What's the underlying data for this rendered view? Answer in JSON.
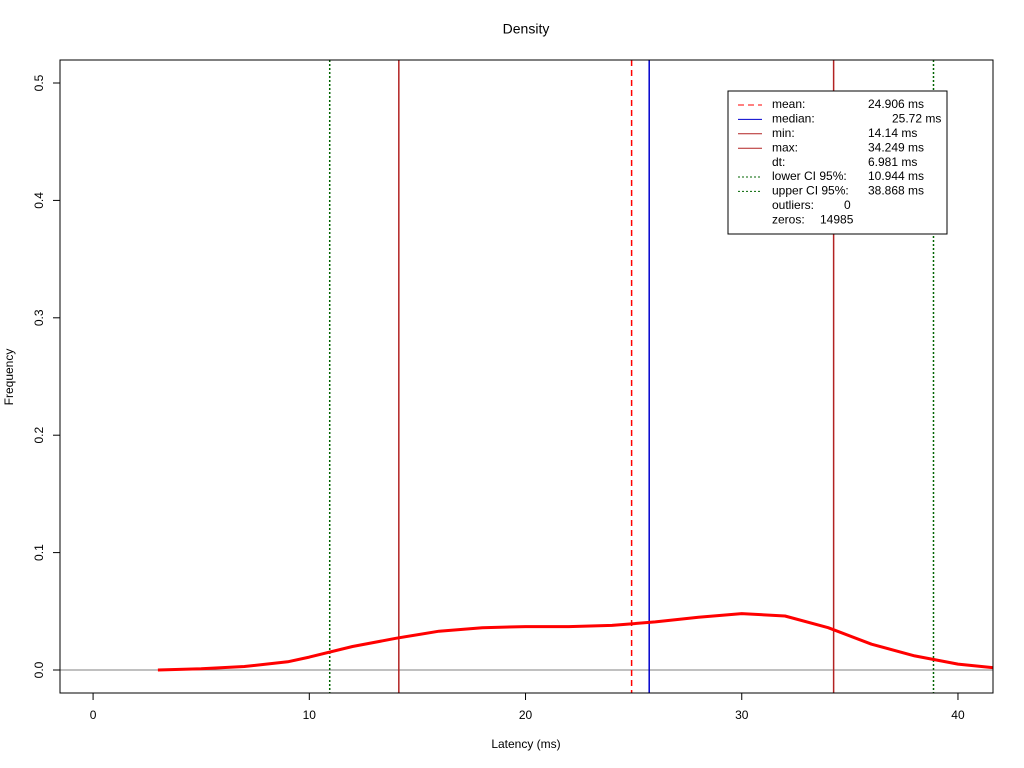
{
  "chart_data": {
    "type": "line",
    "title": "Density",
    "x_label": "Latency (ms)",
    "y_label": "Frequency",
    "x": [
      3,
      5,
      7,
      9,
      10,
      12,
      14,
      16,
      18,
      20,
      22,
      24,
      26,
      28,
      30,
      32,
      34,
      36,
      38,
      40,
      41.6
    ],
    "values": [
      0.0,
      0.001,
      0.003,
      0.007,
      0.011,
      0.02,
      0.027,
      0.033,
      0.036,
      0.037,
      0.037,
      0.038,
      0.041,
      0.045,
      0.048,
      0.046,
      0.036,
      0.022,
      0.012,
      0.005,
      0.002
    ],
    "color": "#ff0000",
    "xlim": [
      -1.53,
      41.62
    ],
    "ylim": [
      -0.0196,
      0.5196
    ],
    "xticks": [
      0,
      10,
      20,
      30,
      40
    ],
    "yticks": [
      {
        "value": 0,
        "label": "0.0"
      },
      0.1,
      0.2,
      0.3,
      0.4,
      0.5
    ],
    "hline": 0,
    "hline_color": "#808080",
    "lines": [
      {
        "name": "mean:",
        "value": 24.906,
        "label": "24.906 ms",
        "color": "#ff0000",
        "style": "dashed"
      },
      {
        "name": "median:",
        "value": 25.72,
        "label": "25.72 ms",
        "color": "#0000cd",
        "style": "solid"
      },
      {
        "name": "min:",
        "value": 14.14,
        "label": "14.14 ms",
        "color": "#b22222",
        "style": "solid"
      },
      {
        "name": "max:",
        "value": 34.249,
        "label": "34.249 ms",
        "color": "#b22222",
        "style": "solid"
      },
      {
        "name": "lower CI 95%:",
        "value": 10.944,
        "label": "10.944 ms",
        "color": "#006400",
        "style": "dotted"
      },
      {
        "name": "upper CI 95%:",
        "value": 38.868,
        "label": "38.868 ms",
        "color": "#006400",
        "style": "dotted"
      }
    ],
    "legend_stats": [
      {
        "name": "dt:",
        "label": "6.981 ms"
      },
      {
        "name": "outliers:",
        "label": "0"
      },
      {
        "name": "zeros:",
        "label": "14985"
      }
    ]
  }
}
